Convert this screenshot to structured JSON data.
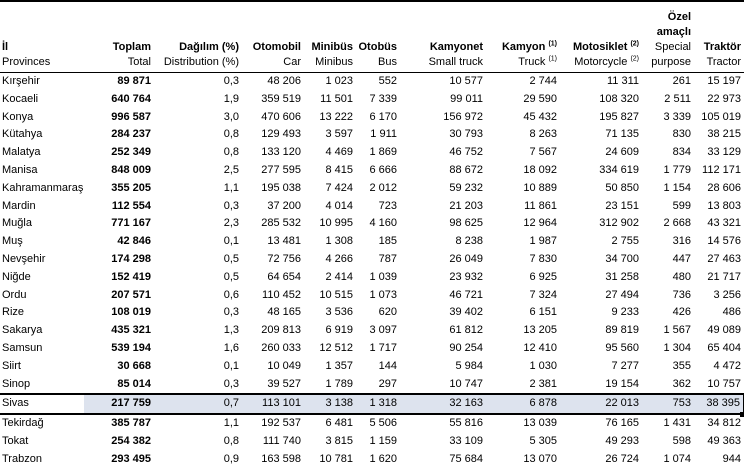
{
  "table": {
    "columns": [
      {
        "id": "il",
        "tr": "İl",
        "en": "Provinces"
      },
      {
        "id": "toplam",
        "tr": "Toplam",
        "en": "Total"
      },
      {
        "id": "dagilim",
        "tr": "Dağılım (%)",
        "en": "Distribution (%)"
      },
      {
        "id": "otomobil",
        "tr": "Otomobil",
        "en": "Car"
      },
      {
        "id": "minibus",
        "tr": "Minibüs",
        "en": "Minibus"
      },
      {
        "id": "otobus",
        "tr": "Otobüs",
        "en": "Bus"
      },
      {
        "id": "kamyonet",
        "tr": "Kamyonet",
        "en": "Small truck"
      },
      {
        "id": "kamyon",
        "tr": "Kamyon",
        "tr_sup": "(1)",
        "en": "Truck",
        "en_sup": "(1)"
      },
      {
        "id": "motosiklet",
        "tr": "Motosiklet",
        "tr_sup": "(2)",
        "en": "Motorcycle",
        "en_sup": "(2)"
      },
      {
        "id": "ozel",
        "tr_lines": [
          "Özel",
          "amaçlı"
        ],
        "en_lines": [
          "Special",
          "purpose"
        ]
      },
      {
        "id": "traktor",
        "tr": "Traktör",
        "en": "Tractor"
      }
    ],
    "rows": [
      [
        "Kırşehir",
        "89 871",
        "0,3",
        "48 206",
        "1 023",
        "552",
        "10 577",
        "2 744",
        "11 311",
        "261",
        "15 197"
      ],
      [
        "Kocaeli",
        "640 764",
        "1,9",
        "359 519",
        "11 501",
        "7 339",
        "99 011",
        "29 590",
        "108 320",
        "2 511",
        "22 973"
      ],
      [
        "Konya",
        "996 587",
        "3,0",
        "470 606",
        "13 222",
        "6 170",
        "156 972",
        "45 432",
        "195 827",
        "3 339",
        "105 019"
      ],
      [
        "Kütahya",
        "284 237",
        "0,8",
        "129 493",
        "3 597",
        "1 911",
        "30 793",
        "8 263",
        "71 135",
        "830",
        "38 215"
      ],
      [
        "Malatya",
        "252 349",
        "0,8",
        "133 120",
        "4 469",
        "1 869",
        "46 752",
        "7 567",
        "24 609",
        "834",
        "33 129"
      ],
      [
        "Manisa",
        "848 009",
        "2,5",
        "277 595",
        "8 415",
        "6 666",
        "88 672",
        "18 092",
        "334 619",
        "1 779",
        "112 171"
      ],
      [
        "Kahramanmaraş",
        "355 205",
        "1,1",
        "195 038",
        "7 424",
        "2 012",
        "59 232",
        "10 889",
        "50 850",
        "1 154",
        "28 606"
      ],
      [
        "Mardin",
        "112 554",
        "0,3",
        "37 200",
        "4 014",
        "723",
        "21 203",
        "11 861",
        "23 151",
        "599",
        "13 803"
      ],
      [
        "Muğla",
        "771 167",
        "2,3",
        "285 532",
        "10 995",
        "4 160",
        "98 625",
        "12 964",
        "312 902",
        "2 668",
        "43 321"
      ],
      [
        "Muş",
        "42 846",
        "0,1",
        "13 481",
        "1 308",
        "185",
        "8 238",
        "1 987",
        "2 755",
        "316",
        "14 576"
      ],
      [
        "Nevşehir",
        "174 298",
        "0,5",
        "72 756",
        "4 266",
        "787",
        "26 049",
        "7 830",
        "34 700",
        "447",
        "27 463"
      ],
      [
        "Niğde",
        "152 419",
        "0,5",
        "64 654",
        "2 414",
        "1 039",
        "23 932",
        "6 925",
        "31 258",
        "480",
        "21 717"
      ],
      [
        "Ordu",
        "207 571",
        "0,6",
        "110 452",
        "10 515",
        "1 073",
        "46 721",
        "7 324",
        "27 494",
        "736",
        "3 256"
      ],
      [
        "Rize",
        "108 019",
        "0,3",
        "48 165",
        "3 536",
        "620",
        "39 402",
        "6 151",
        "9 233",
        "426",
        "486"
      ],
      [
        "Sakarya",
        "435 321",
        "1,3",
        "209 813",
        "6 919",
        "3 097",
        "61 812",
        "13 205",
        "89 819",
        "1 567",
        "49 089"
      ],
      [
        "Samsun",
        "539 194",
        "1,6",
        "260 033",
        "12 512",
        "1 717",
        "90 254",
        "12 410",
        "95 560",
        "1 304",
        "65 404"
      ],
      [
        "Siirt",
        "30 668",
        "0,1",
        "10 049",
        "1 357",
        "144",
        "5 984",
        "1 030",
        "7 277",
        "355",
        "4 472"
      ],
      [
        "Sinop",
        "85 014",
        "0,3",
        "39 527",
        "1 789",
        "297",
        "10 747",
        "2 381",
        "19 154",
        "362",
        "10 757"
      ],
      [
        "Sivas",
        "217 759",
        "0,7",
        "113 101",
        "3 138",
        "1 318",
        "32 163",
        "6 878",
        "22 013",
        "753",
        "38 395"
      ],
      [
        "Tekirdağ",
        "385 787",
        "1,1",
        "192 537",
        "6 481",
        "5 506",
        "55 816",
        "13 039",
        "76 165",
        "1 431",
        "34 812"
      ],
      [
        "Tokat",
        "254 382",
        "0,8",
        "111 740",
        "3 815",
        "1 159",
        "33 109",
        "5 305",
        "49 293",
        "598",
        "49 363"
      ],
      [
        "Trabzon",
        "293 495",
        "0,9",
        "163 598",
        "10 781",
        "1 620",
        "75 684",
        "13 070",
        "26 724",
        "1 074",
        "944"
      ]
    ],
    "selected_row": "Sivas",
    "selection_fill": "#dde3ee",
    "border_color": "#000000"
  }
}
